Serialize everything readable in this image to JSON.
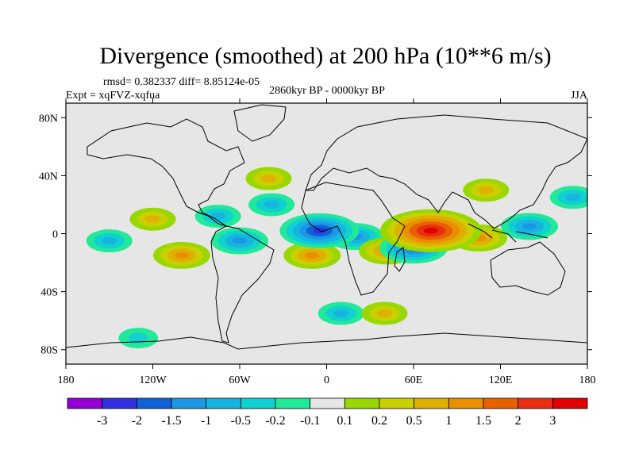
{
  "chart_data": {
    "type": "heatmap",
    "title": "Divergence (smoothed) at 200 hPa (10**6 m/s)",
    "stats_text": "rmsd= 0.382337 diff= 8.85124e-05",
    "experiment_label": "Expt = xqFVZ-xqfua",
    "center_label": "2860kyr BP - 0000kyr BP",
    "season_label": "JJA",
    "x_ticks": [
      "180",
      "120W",
      "60W",
      "0",
      "60E",
      "120E",
      "180"
    ],
    "x_tick_values": [
      -180,
      -120,
      -60,
      0,
      60,
      120,
      180
    ],
    "y_ticks": [
      "80N",
      "40N",
      "0",
      "40S",
      "80S"
    ],
    "y_tick_values": [
      80,
      40,
      0,
      -40,
      -80
    ],
    "lon_range": [
      -180,
      180
    ],
    "lat_range": [
      -90,
      90
    ],
    "colorbar_labels": [
      "-3",
      "-2",
      "-1.5",
      "-1",
      "-0.5",
      "-0.2",
      "-0.1",
      "0.1",
      "0.2",
      "0.5",
      "1",
      "1.5",
      "2",
      "3"
    ],
    "colorbar_colors": [
      "#9400d3",
      "#3030e0",
      "#1060d8",
      "#1a98e6",
      "#18b4e0",
      "#10d0d0",
      "#22e89a",
      "#e6e6e6",
      "#98d800",
      "#c8d000",
      "#e0b000",
      "#e89000",
      "#e86000",
      "#e83010",
      "#e00000"
    ],
    "features": [
      {
        "name": "africa-indian-ocean-max",
        "lon": 72,
        "lat": 2,
        "value": 3
      },
      {
        "name": "east-atlantic-min",
        "lon": -5,
        "lat": 2,
        "value": -2
      },
      {
        "name": "central-africa-min",
        "lon": 20,
        "lat": -2,
        "value": -1
      },
      {
        "name": "south-atlantic-max",
        "lon": -10,
        "lat": -15,
        "value": 1
      },
      {
        "name": "south-indian-max",
        "lon": 42,
        "lat": -12,
        "value": 1
      },
      {
        "name": "indian-ocean-min",
        "lon": 60,
        "lat": -10,
        "value": -1.5
      },
      {
        "name": "maritime-continent-max",
        "lon": 105,
        "lat": -3,
        "value": 1
      },
      {
        "name": "west-pacific-min",
        "lon": 140,
        "lat": 5,
        "value": -1
      },
      {
        "name": "north-pacific-band-min",
        "lon": 170,
        "lat": 25,
        "value": -0.5
      },
      {
        "name": "east-pacific-max",
        "lon": -120,
        "lat": 10,
        "value": 0.5
      },
      {
        "name": "south-pacific-max",
        "lon": -100,
        "lat": -15,
        "value": 1
      },
      {
        "name": "central-pacific-min",
        "lon": -150,
        "lat": -5,
        "value": -0.5
      },
      {
        "name": "amazon-min",
        "lon": -60,
        "lat": -5,
        "value": -1
      },
      {
        "name": "caribbean-min",
        "lon": -75,
        "lat": 12,
        "value": -0.5
      },
      {
        "name": "north-atlantic-max",
        "lon": -40,
        "lat": 38,
        "value": 0.5
      },
      {
        "name": "atlantic-min",
        "lon": -38,
        "lat": 20,
        "value": -0.5
      },
      {
        "name": "southern-ocean-min",
        "lon": 10,
        "lat": -55,
        "value": -0.5
      },
      {
        "name": "southern-ocean-max",
        "lon": 40,
        "lat": -55,
        "value": 0.5
      },
      {
        "name": "antarctic-coast-min",
        "lon": -130,
        "lat": -72,
        "value": -0.2
      },
      {
        "name": "asia-max",
        "lon": 110,
        "lat": 30,
        "value": 0.5
      }
    ]
  }
}
